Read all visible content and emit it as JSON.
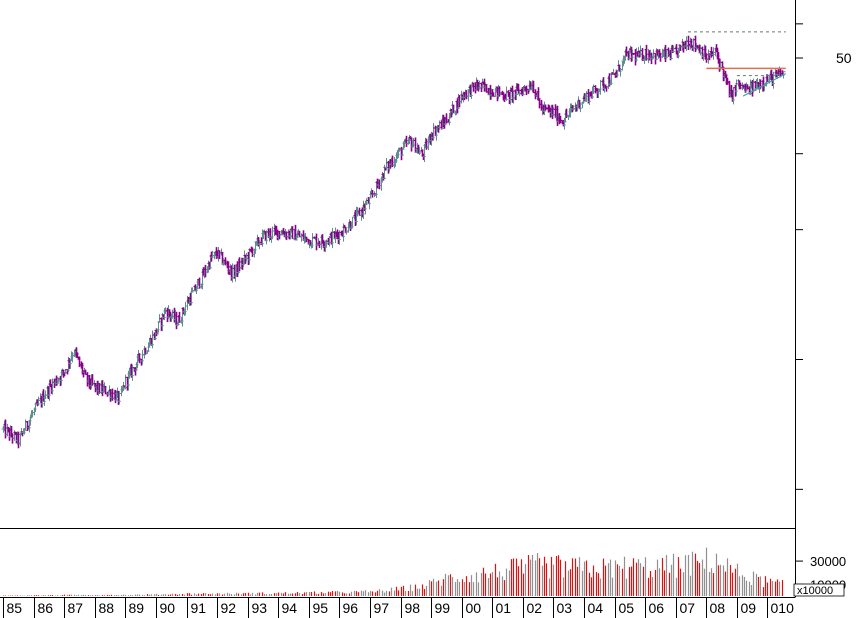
{
  "chart_data": [
    {
      "type": "ohlc",
      "scale": "log",
      "price_tick_labels": [
        "50"
      ],
      "price_tick_values": [
        50
      ],
      "x_tick_labels": [
        "85",
        "86",
        "87",
        "88",
        "89",
        "90",
        "91",
        "92",
        "93",
        "94",
        "95",
        "96",
        "97",
        "98",
        "99",
        "00",
        "01",
        "02",
        "03",
        "04",
        "05",
        "06",
        "07",
        "08",
        "09",
        "010"
      ],
      "x_tick_years": [
        1985,
        1986,
        1987,
        1988,
        1989,
        1990,
        1991,
        1992,
        1993,
        1994,
        1995,
        1996,
        1997,
        1998,
        1999,
        2000,
        2001,
        2002,
        2003,
        2004,
        2005,
        2006,
        2007,
        2008,
        2009,
        2010
      ],
      "x_range_years": [
        1984.9,
        2010.9
      ],
      "y_range": [
        4.2,
        66
      ],
      "approx_close_path": [
        [
          1985.0,
          6.9
        ],
        [
          1985.5,
          6.5
        ],
        [
          1986.0,
          7.6
        ],
        [
          1986.5,
          8.6
        ],
        [
          1987.0,
          9.4
        ],
        [
          1987.3,
          10.5
        ],
        [
          1987.7,
          9.0
        ],
        [
          1988.0,
          8.6
        ],
        [
          1988.5,
          8.4
        ],
        [
          1988.8,
          8.1
        ],
        [
          1989.0,
          8.9
        ],
        [
          1989.5,
          10.2
        ],
        [
          1990.0,
          11.6
        ],
        [
          1990.3,
          13.0
        ],
        [
          1990.7,
          12.2
        ],
        [
          1991.0,
          13.5
        ],
        [
          1991.5,
          15.5
        ],
        [
          1991.8,
          17.2
        ],
        [
          1992.0,
          17.6
        ],
        [
          1992.5,
          15.8
        ],
        [
          1993.0,
          17.4
        ],
        [
          1993.5,
          19.3
        ],
        [
          1994.0,
          19.8
        ],
        [
          1994.5,
          19.5
        ],
        [
          1995.0,
          18.9
        ],
        [
          1995.5,
          18.8
        ],
        [
          1996.0,
          19.6
        ],
        [
          1996.5,
          21.2
        ],
        [
          1997.0,
          23.5
        ],
        [
          1997.5,
          27.7
        ],
        [
          1998.0,
          30.5
        ],
        [
          1998.3,
          32.2
        ],
        [
          1998.7,
          29.7
        ],
        [
          1999.0,
          33.4
        ],
        [
          1999.5,
          36.0
        ],
        [
          2000.0,
          41.0
        ],
        [
          2000.5,
          43.2
        ],
        [
          2001.0,
          42.0
        ],
        [
          2001.5,
          40.8
        ],
        [
          2002.0,
          42.3
        ],
        [
          2002.3,
          43.6
        ],
        [
          2002.6,
          38.0
        ],
        [
          2003.0,
          37.3
        ],
        [
          2003.3,
          35.8
        ],
        [
          2003.7,
          38.6
        ],
        [
          2004.0,
          40.3
        ],
        [
          2004.5,
          42.8
        ],
        [
          2005.0,
          45.5
        ],
        [
          2005.4,
          51.0
        ],
        [
          2005.8,
          50.4
        ],
        [
          2006.0,
          51.3
        ],
        [
          2006.5,
          50.6
        ],
        [
          2007.0,
          51.3
        ],
        [
          2007.4,
          55.0
        ],
        [
          2007.8,
          52.5
        ],
        [
          2008.0,
          50.0
        ],
        [
          2008.3,
          51.7
        ],
        [
          2008.6,
          45.0
        ],
        [
          2008.8,
          40.5
        ],
        [
          2009.0,
          43.5
        ],
        [
          2009.3,
          42.0
        ],
        [
          2009.6,
          43.2
        ],
        [
          2009.9,
          44.4
        ],
        [
          2010.3,
          45.3
        ],
        [
          2010.5,
          46.2
        ]
      ],
      "annotations": [
        {
          "kind": "dashed-horizontal",
          "color": "#607888",
          "from_year": 2007.4,
          "to_year": 2010.6,
          "price": 57.5
        },
        {
          "kind": "solid-horizontal",
          "color": "#e07050",
          "from_year": 2008.0,
          "to_year": 2010.6,
          "price": 47.3
        },
        {
          "kind": "dashed-horizontal",
          "color": "#607888",
          "from_year": 2009.0,
          "to_year": 2010.1,
          "price": 45.5
        },
        {
          "kind": "trendline",
          "color": "#40a0a0",
          "from": [
            2009.2,
            40.8
          ],
          "to": [
            2010.6,
            46.0
          ]
        }
      ],
      "colors": {
        "up": "#5f8f8f",
        "down": "#8b008b",
        "frame": "#000000"
      }
    },
    {
      "type": "bar",
      "panel": "volume",
      "unit_label": "x10000",
      "tick_labels": [
        "30000",
        "10000"
      ],
      "tick_values": [
        30000,
        10000
      ],
      "y_range": [
        0,
        55000
      ],
      "volume_profile": [
        [
          1985.0,
          300
        ],
        [
          1987.0,
          800
        ],
        [
          1989.0,
          900
        ],
        [
          1991.0,
          1800
        ],
        [
          1993.0,
          2000
        ],
        [
          1995.0,
          2600
        ],
        [
          1997.0,
          3500
        ],
        [
          1997.8,
          5200
        ],
        [
          1998.8,
          8500
        ],
        [
          1999.4,
          14000
        ],
        [
          2000.5,
          17500
        ],
        [
          2001.5,
          21000
        ],
        [
          2002.5,
          25000
        ],
        [
          2003.5,
          23000
        ],
        [
          2004.5,
          22000
        ],
        [
          2005.5,
          24000
        ],
        [
          2006.5,
          23500
        ],
        [
          2007.5,
          26000
        ],
        [
          2008.3,
          30000
        ],
        [
          2009.0,
          19000
        ],
        [
          2009.6,
          14000
        ],
        [
          2010.5,
          9000
        ]
      ],
      "colors": {
        "up": "#909090",
        "down": "#e01010"
      }
    }
  ]
}
